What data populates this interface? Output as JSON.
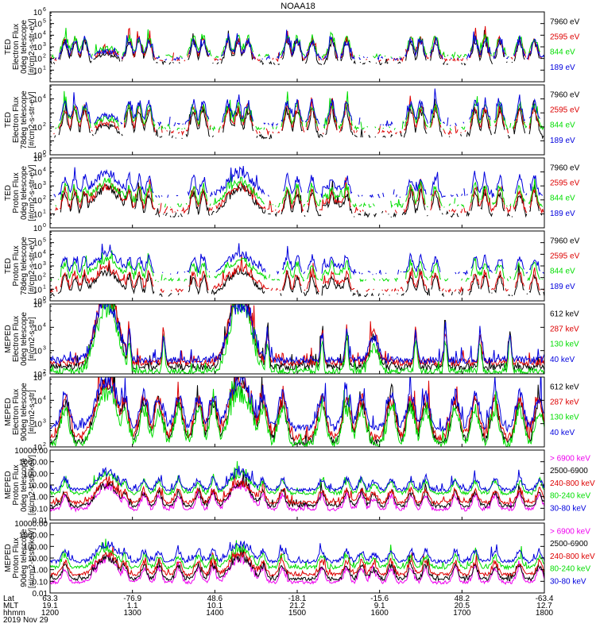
{
  "title": "NOAA18",
  "date_label": "2019 Nov 29",
  "footer": {
    "row_labels": [
      "Lat",
      "MLT",
      "hhmm"
    ],
    "lat": [
      "63.3",
      "-76.9",
      "48.6",
      "-18.1",
      "-15.6",
      "48.2",
      "-63.4"
    ],
    "mlt": [
      "19.1",
      "1.1",
      "10.1",
      "21.2",
      "9.1",
      "20.5",
      "12.7"
    ],
    "hhmm": [
      "1200",
      "1300",
      "1400",
      "1500",
      "1600",
      "1700",
      "1800"
    ]
  },
  "chart_data": [
    {
      "type": "line",
      "scale": "log",
      "ylabel_lines": [
        "TED",
        "Electron Flux",
        "0deg telescope",
        "[#/cm2-s-str-eV]"
      ],
      "ylim": [
        1,
        1000000
      ],
      "ytick_exps": [
        1,
        2,
        3,
        4,
        5,
        6
      ],
      "series": [
        {
          "name": "7960 eV",
          "color": "#000000",
          "level": 1.6,
          "profile": "ted"
        },
        {
          "name": "2595 eV",
          "color": "#dd0000",
          "level": 1.9,
          "profile": "ted"
        },
        {
          "name": "844 eV",
          "color": "#00dd00",
          "level": 2.2,
          "profile": "ted"
        },
        {
          "name": "189 eV",
          "color": "#0000dd",
          "level": 2.0,
          "profile": "ted"
        }
      ]
    },
    {
      "type": "line",
      "scale": "log",
      "ylabel_lines": [
        "TED",
        "Electron Flux",
        "78deg telescope",
        "[#/cm2-s-str-eV]"
      ],
      "ylim": [
        1,
        100000
      ],
      "ytick_exps": [
        0,
        2,
        4
      ],
      "series": [
        {
          "name": "7960 eV",
          "color": "#000000",
          "level": 1.3,
          "profile": "ted"
        },
        {
          "name": "2595 eV",
          "color": "#dd0000",
          "level": 1.6,
          "profile": "ted"
        },
        {
          "name": "844 eV",
          "color": "#00dd00",
          "level": 1.9,
          "profile": "ted"
        },
        {
          "name": "189 eV",
          "color": "#0000dd",
          "level": 2.2,
          "profile": "ted"
        }
      ]
    },
    {
      "type": "line",
      "scale": "log",
      "ylabel_lines": [
        "TED",
        "Proton Flux",
        "0deg telescope",
        "[#/cm2-s-str-eV]"
      ],
      "ylim": [
        1,
        100000
      ],
      "ytick_exps": [
        0,
        1,
        2,
        3,
        4,
        5
      ],
      "series": [
        {
          "name": "7960 eV",
          "color": "#000000",
          "level": 0.9,
          "profile": "proton"
        },
        {
          "name": "2595 eV",
          "color": "#dd0000",
          "level": 1.2,
          "profile": "proton"
        },
        {
          "name": "844 eV",
          "color": "#00dd00",
          "level": 1.6,
          "profile": "proton"
        },
        {
          "name": "189 eV",
          "color": "#0000dd",
          "level": 2.3,
          "profile": "proton"
        }
      ]
    },
    {
      "type": "line",
      "scale": "log",
      "ylabel_lines": [
        "TED",
        "Proton Flux",
        "78deg telescope",
        "[#/cm2-s-str-eV]"
      ],
      "ylim": [
        1,
        1000000
      ],
      "ytick_exps": [
        0,
        1,
        2,
        3,
        4,
        5
      ],
      "series": [
        {
          "name": "7960 eV",
          "color": "#000000",
          "level": 0.5,
          "profile": "proton"
        },
        {
          "name": "2595 eV",
          "color": "#dd0000",
          "level": 0.9,
          "profile": "proton"
        },
        {
          "name": "844 eV",
          "color": "#00dd00",
          "level": 1.8,
          "profile": "proton"
        },
        {
          "name": "189 eV",
          "color": "#0000dd",
          "level": 2.4,
          "profile": "proton"
        }
      ]
    },
    {
      "type": "line",
      "scale": "log",
      "ylabel_lines": [
        "MEPED",
        "Electron Flux",
        "0deg telescope",
        "[#/cm2-s-str]"
      ],
      "ylim": [
        100,
        100000
      ],
      "ytick_exps": [
        2,
        3,
        4,
        5
      ],
      "series": [
        {
          "name": "612 keV",
          "color": "#000000",
          "level": 2.3,
          "profile": "meped0"
        },
        {
          "name": "287 keV",
          "color": "#dd0000",
          "level": 2.5,
          "profile": "meped0"
        },
        {
          "name": "130 keV",
          "color": "#00dd00",
          "level": 2.1,
          "profile": "meped0"
        },
        {
          "name": "40 keV",
          "color": "#0000dd",
          "level": 2.6,
          "profile": "meped0"
        }
      ]
    },
    {
      "type": "line",
      "scale": "log",
      "ylabel_lines": [
        "MEPED",
        "Electron Flux",
        "90deg telescope",
        "[#/cm2-s-str]"
      ],
      "ylim": [
        100,
        100000
      ],
      "ytick_exps": [
        2,
        3,
        4,
        5
      ],
      "series": [
        {
          "name": "612 keV",
          "color": "#000000",
          "level": 2.2,
          "profile": "meped90"
        },
        {
          "name": "287 keV",
          "color": "#dd0000",
          "level": 2.4,
          "profile": "meped90"
        },
        {
          "name": "130 keV",
          "color": "#00dd00",
          "level": 2.1,
          "profile": "meped90"
        },
        {
          "name": "40 keV",
          "color": "#0000dd",
          "level": 2.8,
          "profile": "meped90"
        }
      ]
    },
    {
      "type": "line",
      "scale": "log",
      "ylabel_lines": [
        "MEPED",
        "Proton Flux",
        "0deg telescope",
        "[#/cm2-s-str-keV]"
      ],
      "ylim": [
        0.01,
        10000
      ],
      "tick_labels": [
        "0.01",
        "0.10",
        "1.00",
        "10.00",
        "100.00",
        "1000.00",
        "10000.00"
      ],
      "series": [
        {
          "name": "> 6900 keV",
          "color": "#ee00ee",
          "level": -1.1,
          "profile": "mepedp"
        },
        {
          "name": "2500-6900",
          "color": "#000000",
          "level": -0.8,
          "profile": "mepedp"
        },
        {
          "name": "240-800 keV",
          "color": "#dd0000",
          "level": -0.5,
          "profile": "mepedp"
        },
        {
          "name": "80-240 keV",
          "color": "#00dd00",
          "level": 0.3,
          "profile": "mepedp"
        },
        {
          "name": "30-80 keV",
          "color": "#0000dd",
          "level": 0.6,
          "profile": "mepedp"
        }
      ]
    },
    {
      "type": "line",
      "scale": "log",
      "ylabel_lines": [
        "MEPED",
        "Proton Flux",
        "90deg telescope",
        "[#/cm2-s-str-keV]"
      ],
      "ylim": [
        0.01,
        10000
      ],
      "tick_labels": [
        "0.01",
        "0.10",
        "1.00",
        "10.00",
        "100.00",
        "1000.00",
        "10000.00"
      ],
      "series": [
        {
          "name": "> 6900 keV",
          "color": "#ee00ee",
          "level": -1.1,
          "profile": "mepedp"
        },
        {
          "name": "2500-6900",
          "color": "#000000",
          "level": -0.8,
          "profile": "mepedp"
        },
        {
          "name": "240-800 keV",
          "color": "#dd0000",
          "level": -0.4,
          "profile": "mepedp"
        },
        {
          "name": "80-240 keV",
          "color": "#00dd00",
          "level": 0.2,
          "profile": "mepedp"
        },
        {
          "name": "30-80 keV",
          "color": "#0000dd",
          "level": 0.7,
          "profile": "mepedp"
        }
      ]
    }
  ]
}
